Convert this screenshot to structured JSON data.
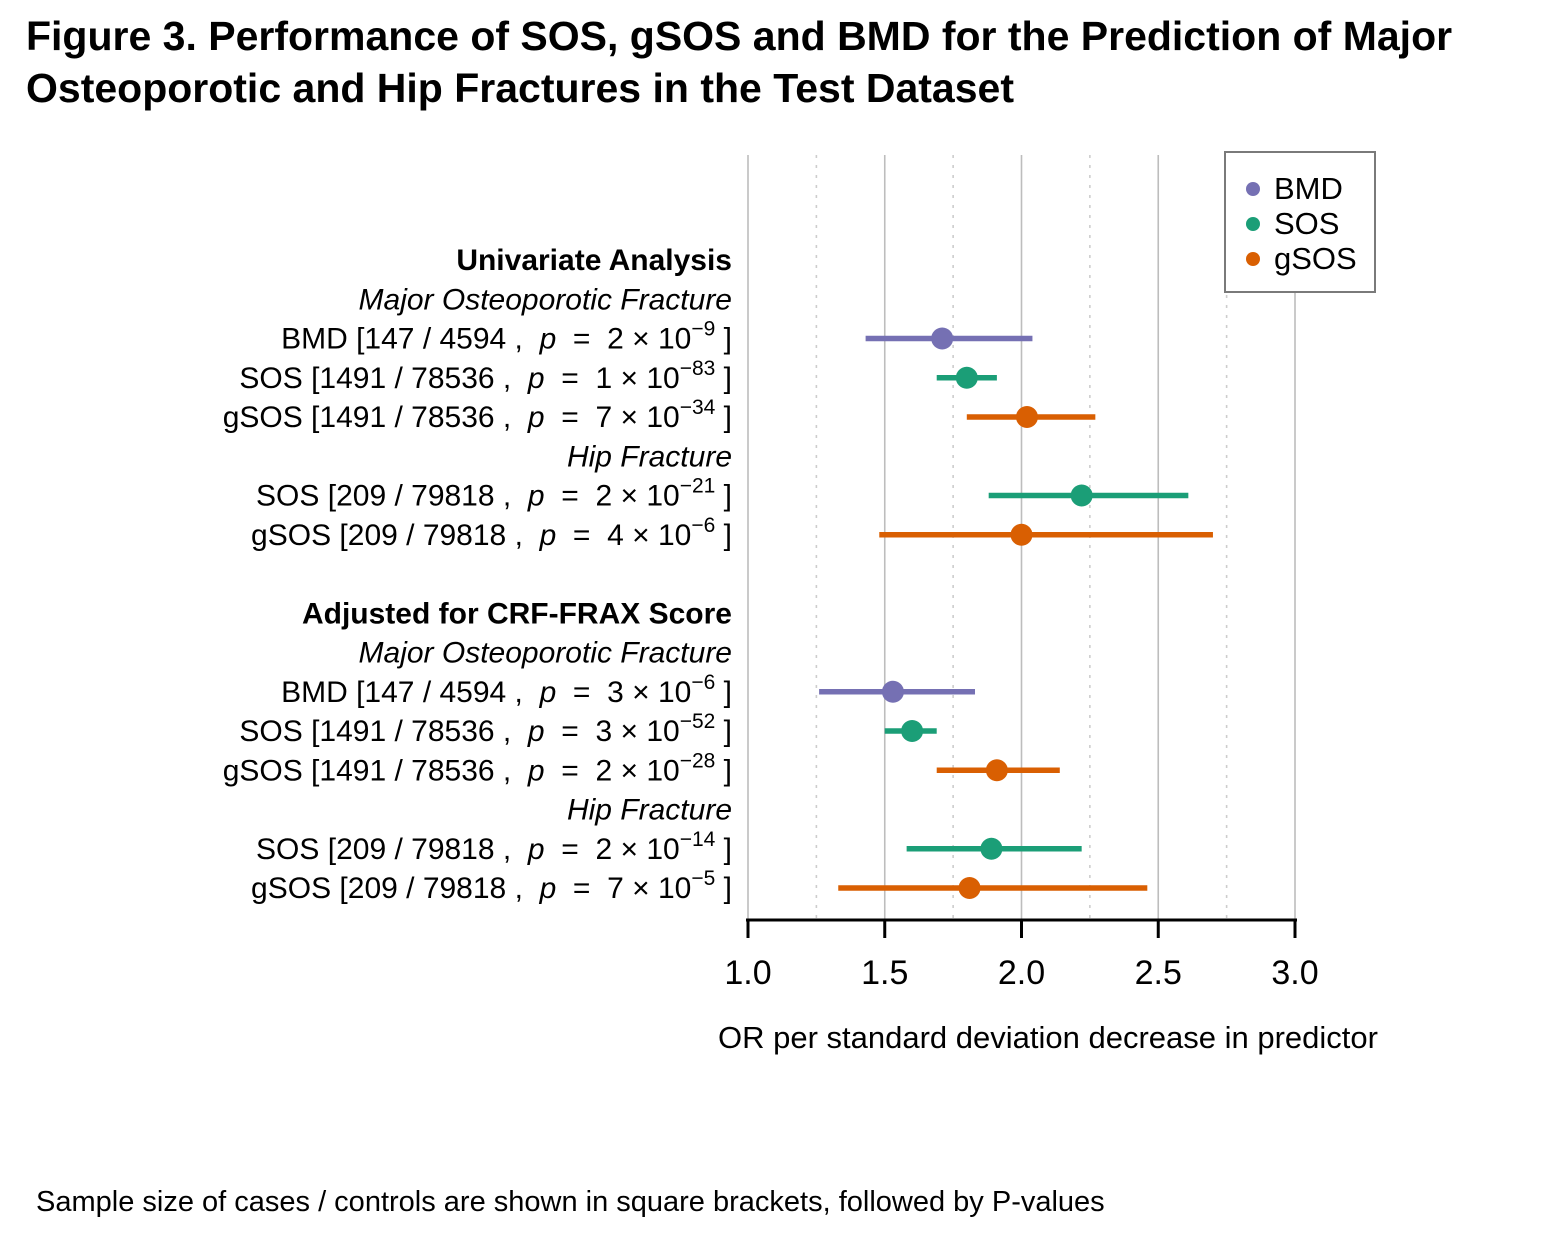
{
  "figure": {
    "title": "Figure 3. Performance of SOS, gSOS and BMD for the Prediction of Major Osteoporotic and Hip Fractures in the Test Dataset",
    "caption": "Sample size of cases / controls are shown in square brackets, followed by P-values"
  },
  "legend": {
    "position": "top-right",
    "items": [
      {
        "label": "BMD",
        "color": "#7570B3"
      },
      {
        "label": "SOS",
        "color": "#1B9E77"
      },
      {
        "label": "gSOS",
        "color": "#D95F02"
      }
    ]
  },
  "label_format": {
    "p_symbol": "p",
    "equals": "=",
    "multiplier": "× 10",
    "close_bracket": "]",
    "note": "row label pattern: SERIES [cases / controls , p = m × 10^exp ]"
  },
  "chart_data": {
    "type": "scatter",
    "subtype": "forest-plot (odds ratio with 95% CI error bars)",
    "title": "",
    "xlabel": "OR per standard deviation decrease in predictor",
    "ylabel": "",
    "xlim": [
      1.0,
      3.0
    ],
    "x_ticks": [
      1.0,
      1.5,
      2.0,
      2.5,
      3.0
    ],
    "x_tick_labels": [
      "1.0",
      "1.5",
      "2.0",
      "2.5",
      "3.0"
    ],
    "major_gridlines": [
      1.0,
      1.5,
      2.0,
      2.5,
      3.0
    ],
    "minor_gridlines": [
      1.25,
      1.75,
      2.25,
      2.75
    ],
    "grid": "vertical: light solid at major ticks, light dashed at minor ticks",
    "legend_position": "top-right inset box",
    "series_colors": {
      "BMD": "#7570B3",
      "SOS": "#1B9E77",
      "gSOS": "#D95F02"
    },
    "rows": [
      {
        "kind": "group",
        "label": "Univariate Analysis"
      },
      {
        "kind": "subgroup",
        "label": "Major Osteoporotic Fracture"
      },
      {
        "kind": "data",
        "series": "BMD",
        "cases": 147,
        "controls": 4594,
        "p_mantissa": 2,
        "p_exponent": -9,
        "or": 1.71,
        "ci_low": 1.43,
        "ci_high": 2.04
      },
      {
        "kind": "data",
        "series": "SOS",
        "cases": 1491,
        "controls": 78536,
        "p_mantissa": 1,
        "p_exponent": -83,
        "or": 1.8,
        "ci_low": 1.69,
        "ci_high": 1.91
      },
      {
        "kind": "data",
        "series": "gSOS",
        "cases": 1491,
        "controls": 78536,
        "p_mantissa": 7,
        "p_exponent": -34,
        "or": 2.02,
        "ci_low": 1.8,
        "ci_high": 2.27
      },
      {
        "kind": "subgroup",
        "label": "Hip Fracture"
      },
      {
        "kind": "data",
        "series": "SOS",
        "cases": 209,
        "controls": 79818,
        "p_mantissa": 2,
        "p_exponent": -21,
        "or": 2.22,
        "ci_low": 1.88,
        "ci_high": 2.61
      },
      {
        "kind": "data",
        "series": "gSOS",
        "cases": 209,
        "controls": 79818,
        "p_mantissa": 4,
        "p_exponent": -6,
        "or": 2.0,
        "ci_low": 1.48,
        "ci_high": 2.7
      },
      {
        "kind": "group",
        "label": "Adjusted for CRF-FRAX Score",
        "gap_before": true
      },
      {
        "kind": "subgroup",
        "label": "Major Osteoporotic Fracture"
      },
      {
        "kind": "data",
        "series": "BMD",
        "cases": 147,
        "controls": 4594,
        "p_mantissa": 3,
        "p_exponent": -6,
        "or": 1.53,
        "ci_low": 1.26,
        "ci_high": 1.83
      },
      {
        "kind": "data",
        "series": "SOS",
        "cases": 1491,
        "controls": 78536,
        "p_mantissa": 3,
        "p_exponent": -52,
        "or": 1.6,
        "ci_low": 1.5,
        "ci_high": 1.69
      },
      {
        "kind": "data",
        "series": "gSOS",
        "cases": 1491,
        "controls": 78536,
        "p_mantissa": 2,
        "p_exponent": -28,
        "or": 1.91,
        "ci_low": 1.69,
        "ci_high": 2.14
      },
      {
        "kind": "subgroup",
        "label": "Hip Fracture"
      },
      {
        "kind": "data",
        "series": "SOS",
        "cases": 209,
        "controls": 79818,
        "p_mantissa": 2,
        "p_exponent": -14,
        "or": 1.89,
        "ci_low": 1.58,
        "ci_high": 2.22
      },
      {
        "kind": "data",
        "series": "gSOS",
        "cases": 209,
        "controls": 79818,
        "p_mantissa": 7,
        "p_exponent": -5,
        "or": 1.81,
        "ci_low": 1.33,
        "ci_high": 2.46
      }
    ]
  }
}
